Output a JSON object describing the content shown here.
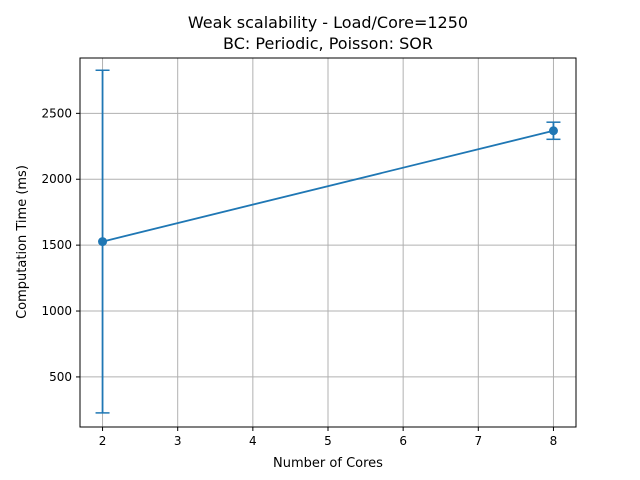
{
  "chart_data": {
    "type": "line",
    "title_line1": "Weak scalability - Load/Core=1250",
    "title_line2": "BC: Periodic, Poisson: SOR",
    "xlabel": "Number of Cores",
    "ylabel": "Computation Time (ms)",
    "xlim": [
      1.7,
      8.3
    ],
    "ylim": [
      120,
      2920
    ],
    "xticks": [
      2,
      3,
      4,
      5,
      6,
      7,
      8
    ],
    "yticks": [
      500,
      1000,
      1500,
      2000,
      2500
    ],
    "grid": true,
    "series": [
      {
        "x": [
          2,
          8
        ],
        "y": [
          1527,
          2368
        ],
        "yerr": [
          1300,
          65
        ],
        "color": "#1f77b4",
        "marker": "circle",
        "errorbar_caps": true
      }
    ]
  }
}
